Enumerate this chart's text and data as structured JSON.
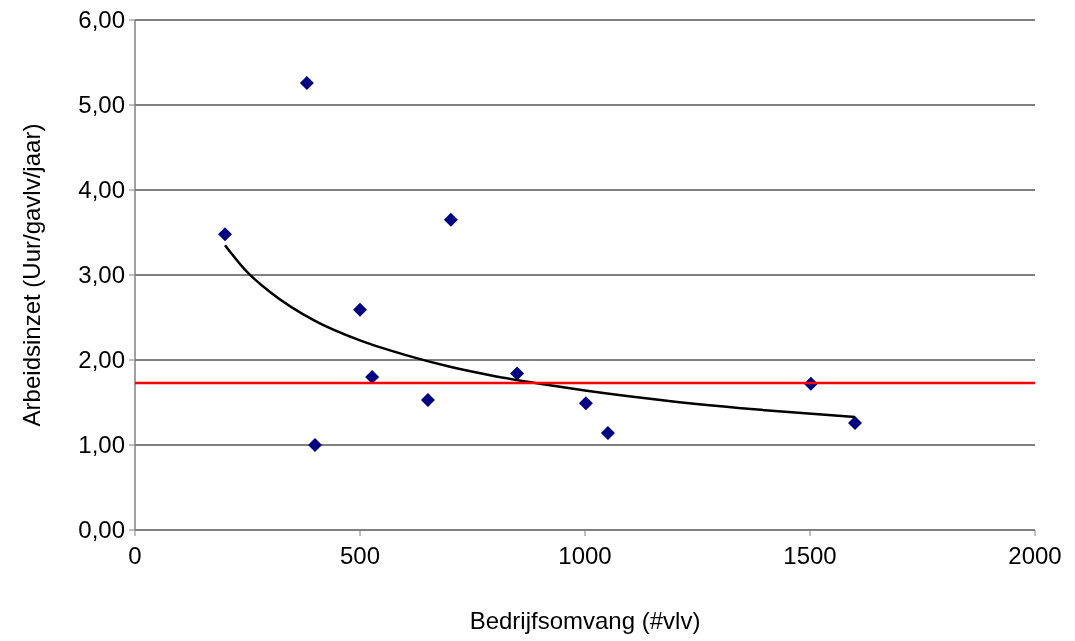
{
  "chart_data": {
    "type": "scatter",
    "xlabel": "Bedrijfsomvang (#vlv)",
    "ylabel": "Arbeidsinzet (Uur/gavlv/jaar)",
    "xlim": [
      0,
      2000
    ],
    "xticks": [
      0,
      500,
      1000,
      1500,
      2000
    ],
    "ylim": [
      0,
      6
    ],
    "yticks": [
      {
        "value": 0,
        "label": "0,00"
      },
      {
        "value": 1,
        "label": "1,00"
      },
      {
        "value": 2,
        "label": "2,00"
      },
      {
        "value": 3,
        "label": "3,00"
      },
      {
        "value": 4,
        "label": "4,00"
      },
      {
        "value": 5,
        "label": "5,00"
      },
      {
        "value": 6,
        "label": "6,00"
      }
    ],
    "grid": "y",
    "series": [
      {
        "color": "#000080",
        "marker": "diamond",
        "x": [
          200,
          382,
          400,
          500,
          527,
          651,
          702,
          849,
          1002,
          1051,
          1502,
          1600
        ],
        "values": [
          3.48,
          5.26,
          1.0,
          2.59,
          1.8,
          1.53,
          3.65,
          1.84,
          1.49,
          1.14,
          1.72,
          1.26
        ]
      },
      {
        "type": "line",
        "color": "#000000",
        "marker": "none",
        "line_style": "solid",
        "x": [
          200,
          250,
          300,
          400,
          500,
          600,
          700,
          800,
          900,
          1000,
          1200,
          1400,
          1600
        ],
        "values": [
          3.35,
          3.03,
          2.8,
          2.46,
          2.23,
          2.06,
          1.92,
          1.81,
          1.72,
          1.64,
          1.51,
          1.41,
          1.33
        ]
      }
    ],
    "ref_lines": [
      {
        "axis": "y",
        "value": 1.73,
        "color": "#ff0000",
        "line_style": "solid"
      }
    ]
  }
}
